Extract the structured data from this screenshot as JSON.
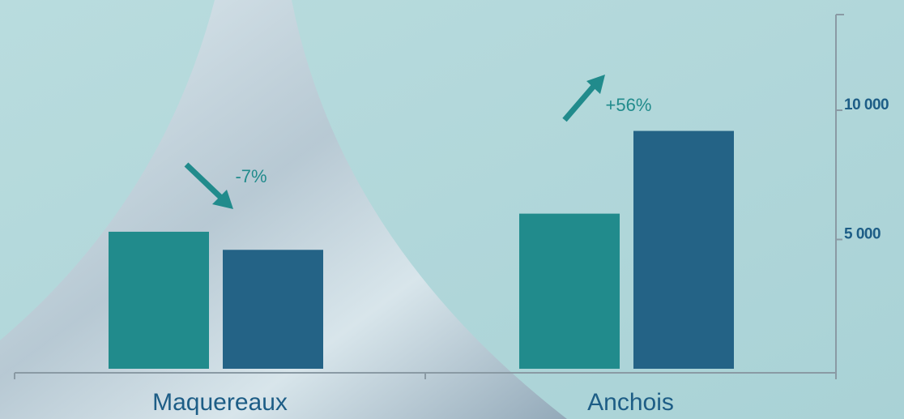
{
  "chart_data": {
    "type": "bar",
    "categories": [
      "Maquereaux",
      "Anchois"
    ],
    "series": [
      {
        "color": "#218b8c",
        "values": [
          5300,
          6000
        ]
      },
      {
        "color": "#246386",
        "values": [
          4600,
          9200
        ]
      }
    ],
    "ylim": [
      0,
      13700
    ],
    "yticks": [
      {
        "value": 5000,
        "label": "5 000"
      },
      {
        "value": 10000,
        "label": "10 000"
      }
    ],
    "annotations": [
      "-7%",
      "+56%"
    ]
  }
}
